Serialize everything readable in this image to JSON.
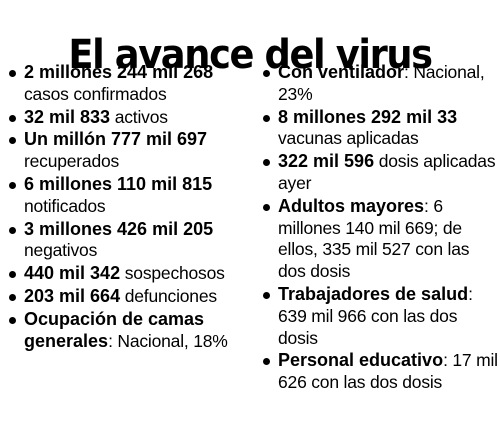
{
  "title": "El avance del virus",
  "left_column": [
    {
      "bold": "2 millones 244 mil 268",
      "rest": " casos confirmados"
    },
    {
      "bold": "32 mil 833",
      "rest": " activos"
    },
    {
      "bold": "Un millón 777 mil 697",
      "rest": " recuperados"
    },
    {
      "bold": "6 millones 110 mil 815",
      "rest": " notificados"
    },
    {
      "bold": "3 millones 426 mil 205",
      "rest": " negativos"
    },
    {
      "bold": "440 mil 342",
      "rest": " sospechosos"
    },
    {
      "bold": "203 mil 664",
      "rest": " defunciones"
    },
    {
      "bold": "Ocupación de camas generales",
      "rest": ": Nacional, 18%"
    }
  ],
  "right_column": [
    {
      "bold": "Con ventilador",
      "rest": ": Nacional, 23%"
    },
    {
      "bold": "8 millones 292 mil 33",
      "rest": " vacunas aplicadas"
    },
    {
      "bold": "322 mil 596",
      "rest": " dosis aplicadas ayer"
    },
    {
      "bold": "Adultos mayores",
      "rest": ": 6 millones 140 mil 669; de ellos, 335 mil 527 con las dos dosis"
    },
    {
      "bold": "Trabajadores de salud",
      "rest": ": 639 mil 966 con las dos dosis"
    },
    {
      "bold": "Personal educativo",
      "rest": ": 17 mil 626 con las dos dosis"
    }
  ]
}
